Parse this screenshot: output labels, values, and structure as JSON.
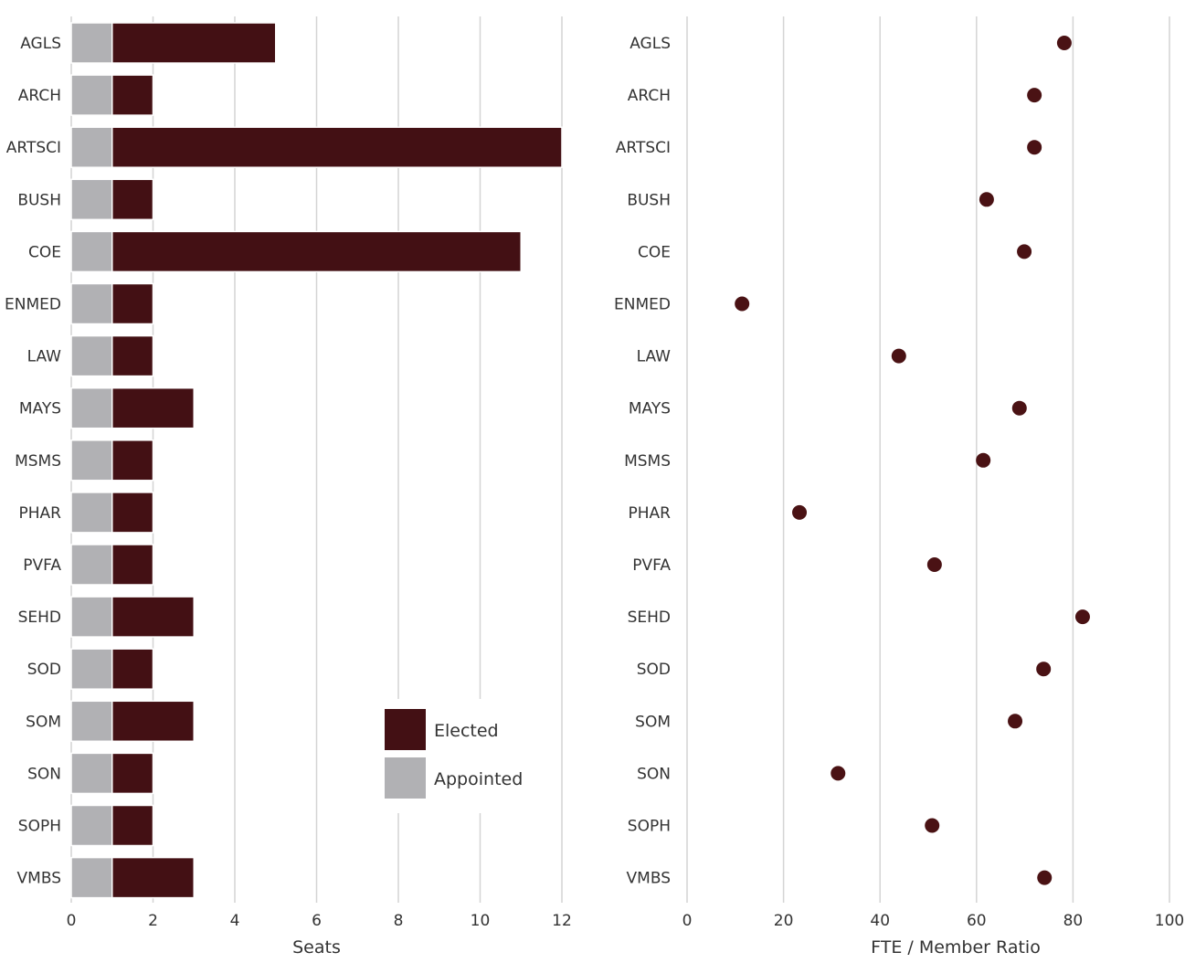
{
  "chart_data": [
    {
      "type": "bar",
      "stacked": true,
      "orientation": "horizontal",
      "categories": [
        "AGLS",
        "ARCH",
        "ARTSCI",
        "BUSH",
        "COE",
        "ENMED",
        "LAW",
        "MAYS",
        "MSMS",
        "PHAR",
        "PVFA",
        "SEHD",
        "SOD",
        "SOM",
        "SON",
        "SOPH",
        "VMBS"
      ],
      "series": [
        {
          "name": "Appointed",
          "color": "#b1b1b4",
          "values": [
            1,
            1,
            1,
            1,
            1,
            1,
            1,
            1,
            1,
            1,
            1,
            1,
            1,
            1,
            1,
            1,
            1
          ]
        },
        {
          "name": "Elected",
          "color": "#431014",
          "values": [
            4,
            1,
            11,
            1,
            10,
            1,
            1,
            2,
            1,
            1,
            1,
            2,
            1,
            2,
            1,
            1,
            2
          ]
        }
      ],
      "legend_order": [
        "Elected",
        "Appointed"
      ],
      "xlabel": "Seats",
      "xlim": [
        0,
        12
      ],
      "xticks": [
        0,
        2,
        4,
        6,
        8,
        10,
        12
      ],
      "grid": true,
      "legend_placement": "bottom-right"
    },
    {
      "type": "scatter",
      "categories": [
        "AGLS",
        "ARCH",
        "ARTSCI",
        "BUSH",
        "COE",
        "ENMED",
        "LAW",
        "MAYS",
        "MSMS",
        "PHAR",
        "PVFA",
        "SEHD",
        "SOD",
        "SOM",
        "SON",
        "SOPH",
        "VMBS"
      ],
      "values": [
        78.2,
        72.0,
        72.0,
        62.1,
        69.9,
        11.4,
        43.9,
        68.9,
        61.4,
        23.3,
        51.3,
        82.0,
        73.9,
        68.0,
        31.3,
        50.8,
        74.1
      ],
      "color": "#4a1214",
      "xlabel": "FTE / Member Ratio",
      "xlim": [
        0,
        100
      ],
      "xticks": [
        0,
        20,
        40,
        60,
        80,
        100
      ],
      "grid": true
    }
  ]
}
